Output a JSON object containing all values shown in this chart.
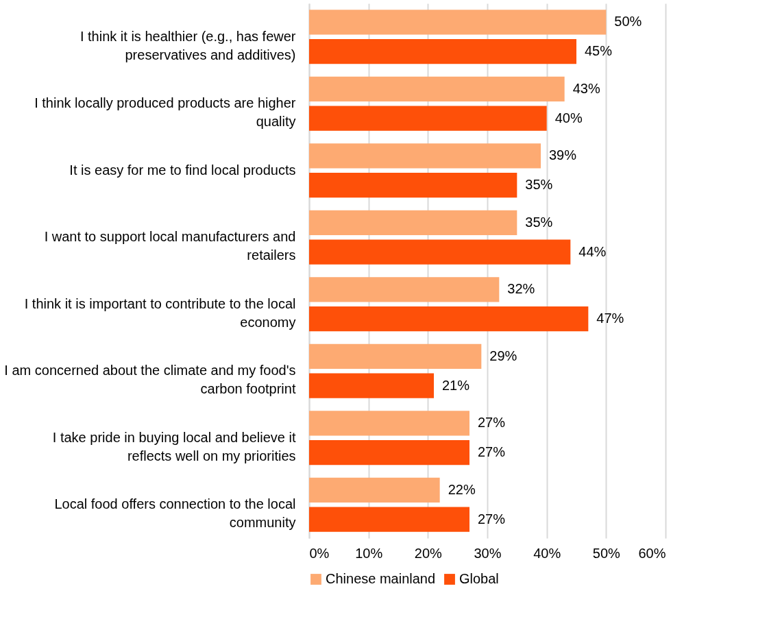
{
  "chart_data": {
    "type": "bar",
    "orientation": "horizontal",
    "categories": [
      "I think it is healthier (e.g., has fewer preservatives and additives)",
      "I think locally produced products are higher quality",
      "It is easy for me to find local products",
      "I want to support local manufacturers and retailers",
      "I think it is important to contribute to the local economy",
      "I am concerned about the climate and my food's carbon footprint",
      "I take pride in buying local and believe it reflects well on my priorities",
      "Local food offers connection to the local community"
    ],
    "series": [
      {
        "name": "Chinese mainland",
        "color": "#fdaa72",
        "values": [
          50,
          43,
          39,
          35,
          32,
          29,
          27,
          22
        ],
        "value_labels": [
          "50%",
          "43%",
          "39%",
          "35%",
          "32%",
          "29%",
          "27%",
          "22%"
        ]
      },
      {
        "name": "Global",
        "color": "#fe5009",
        "values": [
          45,
          40,
          35,
          44,
          47,
          21,
          27,
          27
        ],
        "value_labels": [
          "45%",
          "40%",
          "35%",
          "44%",
          "47%",
          "21%",
          "27%",
          "27%"
        ]
      }
    ],
    "xlim": [
      0,
      60
    ],
    "xticks": [
      {
        "value": 0,
        "label": "0%"
      },
      {
        "value": 10,
        "label": "10%"
      },
      {
        "value": 20,
        "label": "20%"
      },
      {
        "value": 30,
        "label": "30%"
      },
      {
        "value": 40,
        "label": "40%"
      },
      {
        "value": 50,
        "label": "50%"
      },
      {
        "value": 60,
        "label": "60%"
      }
    ],
    "grid": "x",
    "legend": "bottom"
  }
}
